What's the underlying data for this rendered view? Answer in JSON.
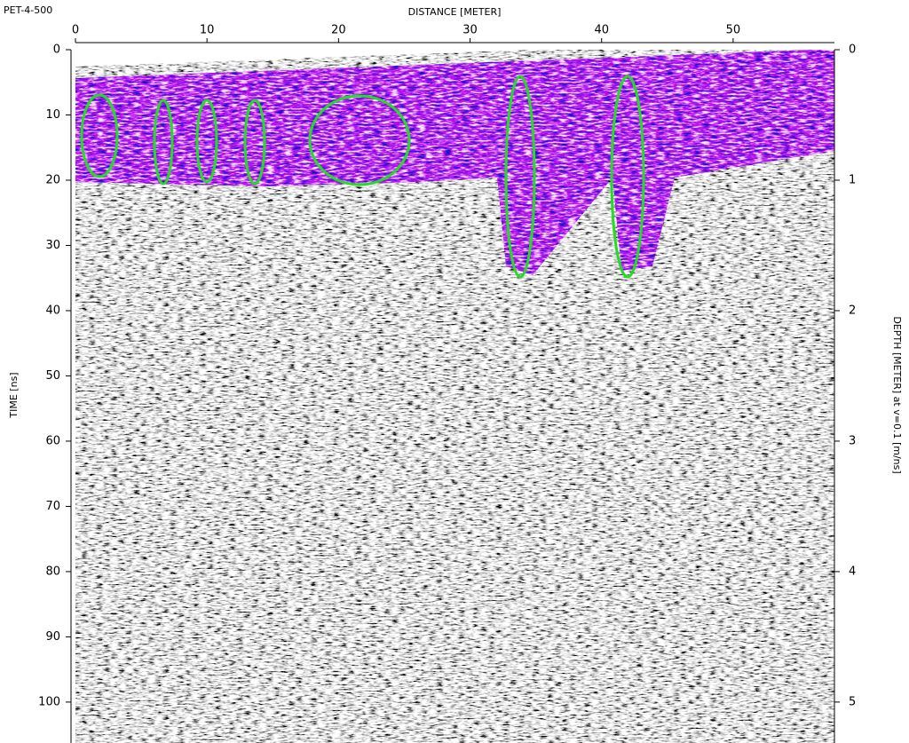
{
  "chart_data": {
    "type": "radargram",
    "title": "PET-4-500",
    "x_label": "DISTANCE [METER]",
    "y_label": "TIME [ns]",
    "y2_label": "DEPTH [METER] at v=0.1 [m/ns]",
    "xlim": [
      0,
      57.7
    ],
    "xticks": [
      0,
      10,
      20,
      30,
      40,
      50
    ],
    "ylim": [
      106,
      0
    ],
    "yticks": [
      0,
      10,
      20,
      30,
      40,
      50,
      60,
      70,
      80,
      90,
      100
    ],
    "y2lim": [
      5.3,
      0
    ],
    "y2ticks": [
      0,
      1,
      2,
      3,
      4,
      5
    ],
    "annotation_color": "#22dd22"
  }
}
